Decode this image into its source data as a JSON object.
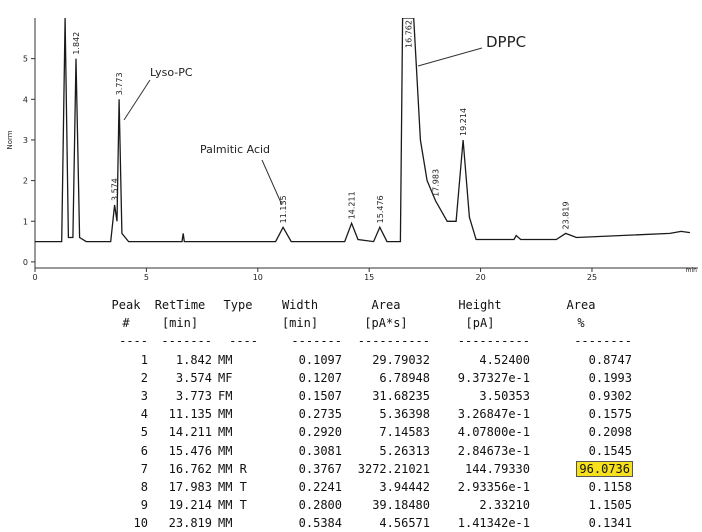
{
  "chart_data": {
    "type": "line",
    "y_label": "Norm",
    "x_unit": "min",
    "color": "#1a1a1a",
    "xlim": [
      0,
      29.4
    ],
    "ylim": [
      -0.15,
      6.0
    ],
    "xticks": [
      0,
      5,
      10,
      15,
      20,
      25
    ],
    "yticks": [
      0,
      1,
      2,
      3,
      4,
      5
    ],
    "x": [
      0,
      1.2,
      1.35,
      1.5,
      1.7,
      1.842,
      2.0,
      2.3,
      3.4,
      3.574,
      3.68,
      3.773,
      3.9,
      4.2,
      6.6,
      6.65,
      6.7,
      10.8,
      11.135,
      11.5,
      13.9,
      14.211,
      14.5,
      15.2,
      15.476,
      15.8,
      16.4,
      16.5,
      16.762,
      17.0,
      17.3,
      17.6,
      17.983,
      18.5,
      18.9,
      19.214,
      19.5,
      19.8,
      21.5,
      21.6,
      21.8,
      23.4,
      23.819,
      24.3,
      28.5,
      29.0,
      29.4
    ],
    "values": [
      0.5,
      0.5,
      6.0,
      0.6,
      0.6,
      5.0,
      0.6,
      0.5,
      0.5,
      1.4,
      1.0,
      4.0,
      0.7,
      0.5,
      0.5,
      0.7,
      0.5,
      0.5,
      0.85,
      0.5,
      0.5,
      0.95,
      0.55,
      0.5,
      0.85,
      0.5,
      0.5,
      6.0,
      6.0,
      6.0,
      3.0,
      2.0,
      1.5,
      1.0,
      1.0,
      3.0,
      1.1,
      0.55,
      0.55,
      0.65,
      0.55,
      0.55,
      0.7,
      0.6,
      0.7,
      0.75,
      0.72
    ],
    "peak_labels": [
      1.842,
      3.574,
      3.773,
      11.135,
      14.211,
      15.476,
      16.762,
      17.983,
      19.214,
      23.819
    ],
    "callouts": [
      "Lyso-PC",
      "Palmitic Acid",
      "DPPC"
    ]
  },
  "table": {
    "header": [
      [
        "Peak",
        "RetTime",
        "Type",
        "Width",
        "Area",
        "Height",
        "Area"
      ],
      [
        "#",
        "[min]",
        null,
        "[min]",
        "[pA*s]",
        "[pA]",
        "%"
      ]
    ],
    "separator": [
      "----",
      "-------",
      "----",
      "-------",
      "----------",
      "----------",
      "--------"
    ],
    "rows": [
      [
        "1",
        "1.842",
        "MM",
        "0.1097",
        "29.79032",
        "4.52400",
        "0.8747"
      ],
      [
        "2",
        "3.574",
        "MF",
        "0.1207",
        "6.78948",
        "9.37327e-1",
        "0.1993"
      ],
      [
        "3",
        "3.773",
        "FM",
        "0.1507",
        "31.68235",
        "3.50353",
        "0.9302"
      ],
      [
        "4",
        "11.135",
        "MM",
        "0.2735",
        "5.36398",
        "3.26847e-1",
        "0.1575"
      ],
      [
        "5",
        "14.211",
        "MM",
        "0.2920",
        "7.14583",
        "4.07800e-1",
        "0.2098"
      ],
      [
        "6",
        "15.476",
        "MM",
        "0.3081",
        "5.26313",
        "2.84673e-1",
        "0.1545"
      ],
      [
        "7",
        "16.762",
        "MM R",
        "0.3767",
        "3272.21021",
        "144.79330",
        "96.0736"
      ],
      [
        "8",
        "17.983",
        "MM T",
        "0.2241",
        "3.94442",
        "2.93356e-1",
        "0.1158"
      ],
      [
        "9",
        "19.214",
        "MM T",
        "0.2800",
        "39.18480",
        "2.33210",
        "1.1505"
      ],
      [
        "10",
        "23.819",
        "MM",
        "0.5384",
        "4.56571",
        "1.41342e-1",
        "0.1341"
      ]
    ],
    "highlight": [
      6,
      6
    ]
  }
}
